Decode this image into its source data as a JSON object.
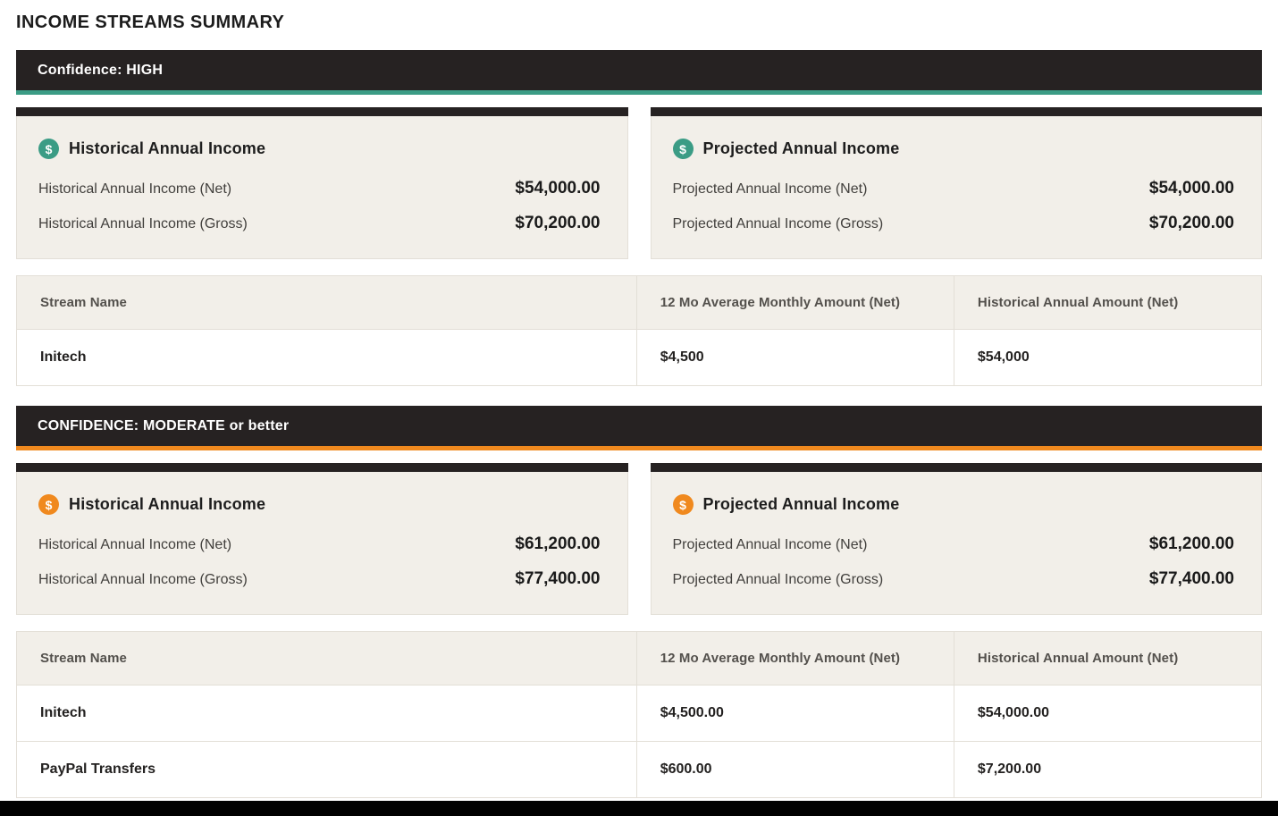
{
  "page_title": "INCOME STREAMS SUMMARY",
  "colors": {
    "bar_background": "#262222",
    "teal_accent": "#3B9C85",
    "orange_accent": "#F0891E",
    "card_background": "#F2EFE9",
    "footer_bar": "#000000"
  },
  "icons": {
    "dollar_glyph": "$"
  },
  "sections": [
    {
      "confidence_label": "Confidence: HIGH",
      "accent_color": "#3B9C85",
      "cards": [
        {
          "title": "Historical Annual Income",
          "rows": [
            {
              "label": "Historical Annual Income (Net)",
              "value": "$54,000.00"
            },
            {
              "label": "Historical Annual Income (Gross)",
              "value": "$70,200.00"
            }
          ]
        },
        {
          "title": "Projected Annual Income",
          "rows": [
            {
              "label": "Projected Annual Income (Net)",
              "value": "$54,000.00"
            },
            {
              "label": "Projected Annual Income (Gross)",
              "value": "$70,200.00"
            }
          ]
        }
      ],
      "table": {
        "headers": [
          "Stream Name",
          "12 Mo Average Monthly Amount (Net)",
          "Historical Annual Amount (Net)"
        ],
        "rows": [
          [
            "Initech",
            "$4,500",
            "$54,000"
          ]
        ]
      }
    },
    {
      "confidence_label": "CONFIDENCE: MODERATE or better",
      "accent_color": "#F0891E",
      "cards": [
        {
          "title": "Historical Annual Income",
          "rows": [
            {
              "label": "Historical Annual Income (Net)",
              "value": "$61,200.00"
            },
            {
              "label": "Historical Annual Income (Gross)",
              "value": "$77,400.00"
            }
          ]
        },
        {
          "title": "Projected Annual Income",
          "rows": [
            {
              "label": "Projected Annual Income (Net)",
              "value": "$61,200.00"
            },
            {
              "label": "Projected Annual Income (Gross)",
              "value": "$77,400.00"
            }
          ]
        }
      ],
      "table": {
        "headers": [
          "Stream Name",
          "12 Mo Average Monthly Amount (Net)",
          "Historical Annual Amount (Net)"
        ],
        "rows": [
          [
            "Initech",
            "$4,500.00",
            "$54,000.00"
          ],
          [
            "PayPal Transfers",
            "$600.00",
            "$7,200.00"
          ]
        ]
      }
    }
  ]
}
